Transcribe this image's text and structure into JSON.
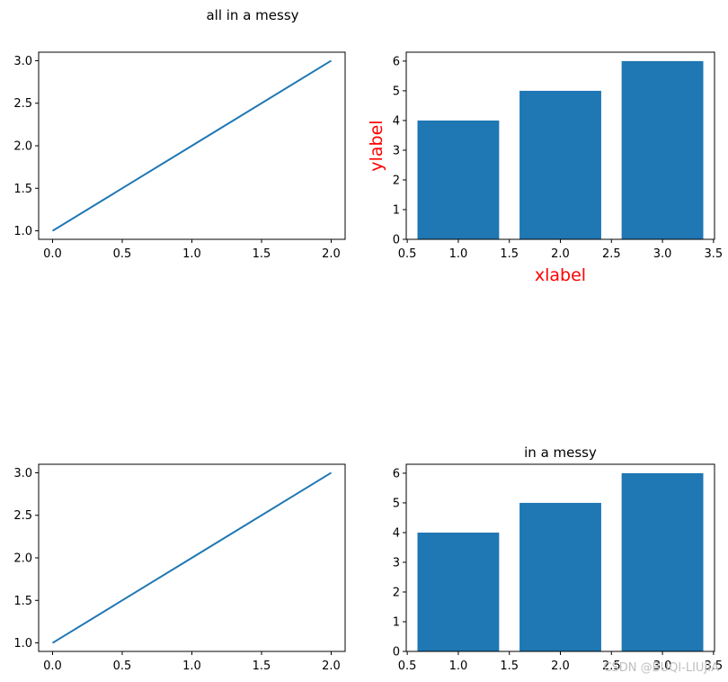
{
  "suptitle": "all in a messy",
  "watermark": "CSDN @BUQI-LIUJIA",
  "colors": {
    "line": "#1f77b4",
    "bar": "#1f77b4",
    "label_accent": "#ff0000"
  },
  "chart_data": [
    {
      "type": "line",
      "title": "",
      "xlabel": "",
      "ylabel": "",
      "x": [
        0,
        1,
        2
      ],
      "series": [
        {
          "values": [
            1,
            2,
            3
          ]
        }
      ],
      "xlim": [
        -0.1,
        2.1
      ],
      "ylim": [
        0.9,
        3.1
      ],
      "xticks": [
        "0.0",
        "0.5",
        "1.0",
        "1.5",
        "2.0"
      ],
      "yticks": [
        "1.0",
        "1.5",
        "2.0",
        "2.5",
        "3.0"
      ],
      "grid": false
    },
    {
      "type": "bar",
      "title": "",
      "xlabel": "xlabel",
      "ylabel": "ylabel",
      "categories": [
        1,
        2,
        3
      ],
      "values": [
        4,
        5,
        6
      ],
      "xlim": [
        0.49,
        3.51
      ],
      "ylim": [
        0,
        6.3
      ],
      "xticks": [
        "0.5",
        "1.0",
        "1.5",
        "2.0",
        "2.5",
        "3.0",
        "3.5"
      ],
      "yticks": [
        "0",
        "1",
        "2",
        "3",
        "4",
        "5",
        "6"
      ],
      "grid": false
    },
    {
      "type": "line",
      "title": "",
      "xlabel": "",
      "ylabel": "",
      "x": [
        0,
        1,
        2
      ],
      "series": [
        {
          "values": [
            1,
            2,
            3
          ]
        }
      ],
      "xlim": [
        -0.1,
        2.1
      ],
      "ylim": [
        0.9,
        3.1
      ],
      "xticks": [
        "0.0",
        "0.5",
        "1.0",
        "1.5",
        "2.0"
      ],
      "yticks": [
        "1.0",
        "1.5",
        "2.0",
        "2.5",
        "3.0"
      ],
      "grid": false
    },
    {
      "type": "bar",
      "title": "in a messy",
      "xlabel": "",
      "ylabel": "",
      "categories": [
        1,
        2,
        3
      ],
      "values": [
        4,
        5,
        6
      ],
      "xlim": [
        0.49,
        3.51
      ],
      "ylim": [
        0,
        6.3
      ],
      "xticks": [
        "0.5",
        "1.0",
        "1.5",
        "2.0",
        "2.5",
        "3.0",
        "3.5"
      ],
      "yticks": [
        "0",
        "1",
        "2",
        "3",
        "4",
        "5",
        "6"
      ],
      "grid": false
    }
  ]
}
